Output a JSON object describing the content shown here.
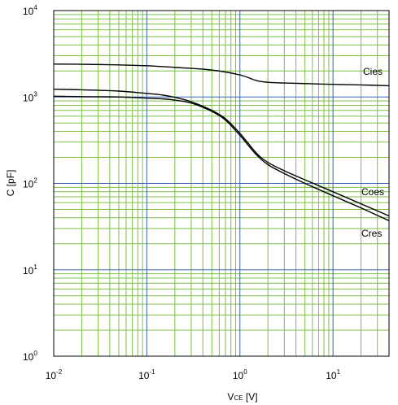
{
  "chart_data": {
    "type": "line",
    "title": "",
    "xlabel": {
      "main": "V",
      "subscript": "CE",
      "suffix": " [V]"
    },
    "ylabel": "C [pF]",
    "xscale": "log",
    "yscale": "log",
    "xlim": [
      0.01,
      40
    ],
    "ylim": [
      1,
      10000
    ],
    "grid": true,
    "colors": {
      "minor_grid": "#7ac143",
      "major_grid": "#3a62b0",
      "frame": "#000000",
      "series": "#000000"
    },
    "x_ticks": [
      {
        "base": "10",
        "exp": "-2"
      },
      {
        "base": "10",
        "exp": "-1"
      },
      {
        "base": "10",
        "exp": "0"
      },
      {
        "base": "10",
        "exp": "1"
      }
    ],
    "y_ticks": [
      {
        "base": "10",
        "exp": "0"
      },
      {
        "base": "10",
        "exp": "1"
      },
      {
        "base": "10",
        "exp": "2"
      },
      {
        "base": "10",
        "exp": "3"
      },
      {
        "base": "10",
        "exp": "4"
      }
    ],
    "series": [
      {
        "name": "Cies",
        "x": [
          0.01,
          0.02,
          0.05,
          0.1,
          0.2,
          0.5,
          1,
          1.5,
          2,
          3,
          5,
          10,
          20,
          40
        ],
        "y": [
          2400,
          2390,
          2350,
          2300,
          2200,
          2050,
          1800,
          1550,
          1480,
          1450,
          1430,
          1400,
          1380,
          1350
        ]
      },
      {
        "name": "Coes",
        "x": [
          0.01,
          0.02,
          0.05,
          0.1,
          0.15,
          0.2,
          0.3,
          0.5,
          0.7,
          1,
          1.5,
          2,
          3,
          5,
          10,
          20,
          40
        ],
        "y": [
          1230,
          1210,
          1170,
          1100,
          1050,
          990,
          880,
          700,
          560,
          380,
          225,
          175,
          140,
          110,
          80,
          58,
          42
        ]
      },
      {
        "name": "Cres",
        "x": [
          0.01,
          0.02,
          0.05,
          0.1,
          0.15,
          0.2,
          0.3,
          0.5,
          0.7,
          1,
          1.5,
          2,
          3,
          5,
          10,
          20,
          40
        ],
        "y": [
          1020,
          1010,
          1000,
          970,
          950,
          920,
          850,
          680,
          540,
          360,
          215,
          165,
          130,
          100,
          72,
          52,
          37
        ]
      }
    ]
  }
}
